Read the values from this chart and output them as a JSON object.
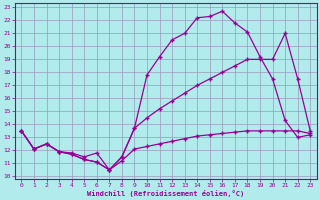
{
  "xlabel": "Windchill (Refroidissement éolien,°C)",
  "bg_color": "#b2ebeb",
  "grid_color": "#9999bb",
  "line_color": "#990099",
  "xlim": [
    -0.5,
    23.5
  ],
  "ylim": [
    9.8,
    23.3
  ],
  "yticks": [
    10,
    11,
    12,
    13,
    14,
    15,
    16,
    17,
    18,
    19,
    20,
    21,
    22,
    23
  ],
  "xticks": [
    0,
    1,
    2,
    3,
    4,
    5,
    6,
    7,
    8,
    9,
    10,
    11,
    12,
    13,
    14,
    15,
    16,
    17,
    18,
    19,
    20,
    21,
    22,
    23
  ],
  "line1_x": [
    0,
    1,
    2,
    3,
    4,
    5,
    6,
    7,
    8,
    9,
    10,
    11,
    12,
    13,
    14,
    15,
    16,
    17,
    18,
    19,
    20,
    21,
    22,
    23
  ],
  "line1_y": [
    13.5,
    12.1,
    12.5,
    11.9,
    11.8,
    11.5,
    11.8,
    10.5,
    11.2,
    12.1,
    12.3,
    12.5,
    12.7,
    12.9,
    13.1,
    13.2,
    13.3,
    13.4,
    13.5,
    13.5,
    13.5,
    13.5,
    13.5,
    13.3
  ],
  "line2_x": [
    0,
    1,
    2,
    3,
    4,
    5,
    6,
    7,
    8,
    9,
    10,
    11,
    12,
    13,
    14,
    15,
    16,
    17,
    18,
    19,
    20,
    21,
    22,
    23
  ],
  "line2_y": [
    13.5,
    12.1,
    12.5,
    11.9,
    11.7,
    11.3,
    11.1,
    10.5,
    11.5,
    13.7,
    17.8,
    19.2,
    20.5,
    21.0,
    22.2,
    22.3,
    22.7,
    21.8,
    21.1,
    19.2,
    17.5,
    14.3,
    13.0,
    13.2
  ],
  "line3_x": [
    0,
    1,
    2,
    3,
    4,
    5,
    6,
    7,
    8,
    9,
    10,
    11,
    12,
    13,
    14,
    15,
    16,
    17,
    18,
    19,
    20,
    21,
    22,
    23
  ],
  "line3_y": [
    13.5,
    12.1,
    12.5,
    11.9,
    11.7,
    11.3,
    11.1,
    10.5,
    11.5,
    13.7,
    14.5,
    15.2,
    15.8,
    16.4,
    17.0,
    17.5,
    18.0,
    18.5,
    19.0,
    19.0,
    19.0,
    21.0,
    17.5,
    13.5
  ]
}
